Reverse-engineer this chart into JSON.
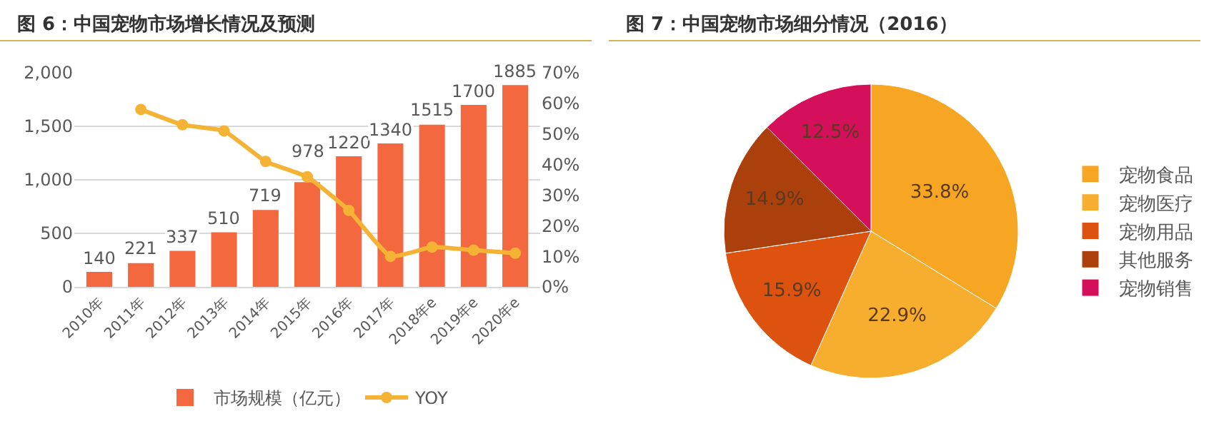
{
  "chart_data": [
    {
      "type": "bar",
      "title": "图 6：中国宠物市场增长情况及预测",
      "categories": [
        "2010年",
        "2011年",
        "2012年",
        "2013年",
        "2014年",
        "2015年",
        "2016年",
        "2017年",
        "2018年e",
        "2019年e",
        "2020年e"
      ],
      "series": [
        {
          "name": "市场规模（亿元）",
          "type": "bar",
          "color": "#f4683f",
          "values": [
            140,
            221,
            337,
            510,
            719,
            978,
            1220,
            1340,
            1515,
            1700,
            1885
          ],
          "value_labels": [
            "140",
            "221",
            "337",
            "510",
            "719",
            "978",
            "1220",
            "1340",
            "1515",
            "1700",
            "1885"
          ]
        },
        {
          "name": "YOY",
          "type": "line",
          "axis": "y2",
          "color": "#f5b335",
          "values": [
            null,
            58,
            53,
            51,
            41,
            36,
            25,
            10,
            13,
            12,
            11
          ]
        }
      ],
      "ylim": [
        0,
        2000
      ],
      "yticks": [
        0,
        {
          "value": 500,
          "label": "500"
        },
        {
          "value": 1000,
          "label": "1,000"
        },
        {
          "value": 1500,
          "label": "1,500"
        },
        {
          "value": 2000,
          "label": "2,000"
        }
      ],
      "y2lim": [
        0,
        70
      ],
      "y2ticks": [
        {
          "value": 0,
          "label": "0%"
        },
        {
          "value": 10,
          "label": "10%"
        },
        {
          "value": 20,
          "label": "20%"
        },
        {
          "value": 30,
          "label": "30%"
        },
        {
          "value": 40,
          "label": "40%"
        },
        {
          "value": 50,
          "label": "50%"
        },
        {
          "value": 60,
          "label": "60%"
        },
        {
          "value": 70,
          "label": "70%"
        }
      ],
      "grid": "y",
      "legend": "bottom",
      "marker": "circle",
      "line_style": "solid"
    },
    {
      "type": "pie",
      "title": "图 7：中国宠物市场细分情况（2016）",
      "categories": [
        "宠物食品",
        "宠物医疗",
        "宠物用品",
        "其他服务",
        "宠物销售"
      ],
      "values": [
        33.8,
        22.9,
        15.9,
        14.9,
        12.5
      ],
      "value_labels": [
        "33.8%",
        "22.9%",
        "15.9%",
        "14.9%",
        "12.5%"
      ],
      "colors": [
        "#f6a623",
        "#f7ad2d",
        "#dd520f",
        "#ac400c",
        "#d5105a"
      ],
      "legend": "right"
    }
  ]
}
